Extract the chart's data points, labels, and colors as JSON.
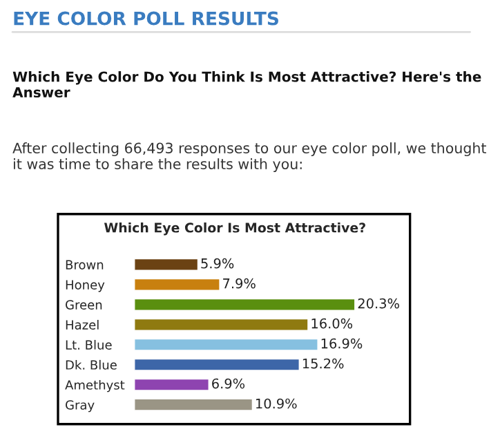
{
  "chart_data": {
    "type": "bar",
    "orientation": "horizontal",
    "title": "Which Eye Color Is Most Attractive?",
    "annotations": [
      "EYE COLOR POLL RESULTS",
      "Which Eye Color Do You Think Is Most Attractive? Here's the Answer",
      "After collecting 66,493 responses to our eye color poll, we thought it was time to share the results with you:"
    ],
    "categories": [
      "Brown",
      "Honey",
      "Green",
      "Hazel",
      "Lt. Blue",
      "Dk. Blue",
      "Amethyst",
      "Gray"
    ],
    "values": [
      5.9,
      7.9,
      20.3,
      16.0,
      16.9,
      15.2,
      6.9,
      10.9
    ],
    "value_labels": [
      "5.9%",
      "7.9%",
      "20.3%",
      "16.0%",
      "16.9%",
      "15.2%",
      "6.9%",
      "10.9%"
    ],
    "colors": [
      "#6b4213",
      "#c8800f",
      "#5a8f0f",
      "#8f7a10",
      "#86c0e0",
      "#3d66a8",
      "#8e44b0",
      "#9a9585"
    ],
    "grid": false,
    "legend": false
  }
}
